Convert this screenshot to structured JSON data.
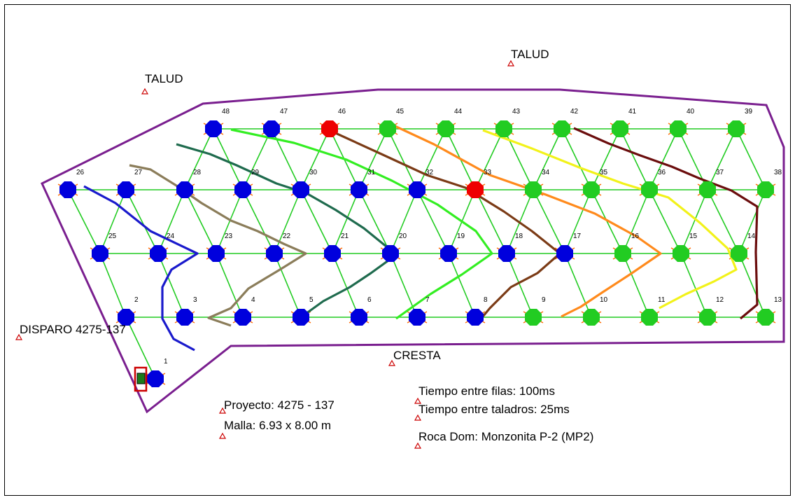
{
  "colors": {
    "boundary": "#7a1f8f",
    "connector": "#22cc22",
    "delay_arrow": "#ff6a00",
    "hole_blue": "#0000dd",
    "hole_green": "#22cc22",
    "hole_red": "#ee0000",
    "marker": "#cc0000",
    "contour_blue": "#1a1acc",
    "contour_khaki": "#8b7d5a",
    "contour_darkgreen": "#1f6b4e",
    "contour_lime": "#33ee22",
    "contour_brown": "#7b3b16",
    "contour_orange": "#ff8a1c",
    "contour_yellow": "#f2f21a",
    "contour_maroon": "#6b0d0d"
  },
  "labels": {
    "talud_1": "TALUD",
    "talud_2": "TALUD",
    "disparo": "DISPARO 4275-137",
    "cresta": "CRESTA",
    "proyecto": "Proyecto: 4275 - 137",
    "malla": "Malla:  6.93 x 8.00 m",
    "tiempo_filas": "Tiempo entre filas: 100ms",
    "tiempo_taladros": "Tiempo entre taladros: 25ms",
    "roca": "Roca Dom: Monzonita P-2 (MP2)"
  },
  "holes": [
    {
      "id": "1",
      "color": "blue"
    },
    {
      "id": "2",
      "color": "blue"
    },
    {
      "id": "3",
      "color": "blue"
    },
    {
      "id": "4",
      "color": "blue"
    },
    {
      "id": "5",
      "color": "blue"
    },
    {
      "id": "6",
      "color": "blue"
    },
    {
      "id": "7",
      "color": "blue"
    },
    {
      "id": "8",
      "color": "blue"
    },
    {
      "id": "9",
      "color": "green"
    },
    {
      "id": "10",
      "color": "green"
    },
    {
      "id": "11",
      "color": "green"
    },
    {
      "id": "12",
      "color": "green"
    },
    {
      "id": "13",
      "color": "green"
    },
    {
      "id": "14",
      "color": "green"
    },
    {
      "id": "15",
      "color": "green"
    },
    {
      "id": "16",
      "color": "green"
    },
    {
      "id": "17",
      "color": "blue"
    },
    {
      "id": "18",
      "color": "blue"
    },
    {
      "id": "19",
      "color": "blue"
    },
    {
      "id": "20",
      "color": "blue"
    },
    {
      "id": "21",
      "color": "blue"
    },
    {
      "id": "22",
      "color": "blue"
    },
    {
      "id": "23",
      "color": "blue"
    },
    {
      "id": "24",
      "color": "blue"
    },
    {
      "id": "25",
      "color": "blue"
    },
    {
      "id": "26",
      "color": "blue"
    },
    {
      "id": "27",
      "color": "blue"
    },
    {
      "id": "28",
      "color": "blue"
    },
    {
      "id": "29",
      "color": "blue"
    },
    {
      "id": "30",
      "color": "blue"
    },
    {
      "id": "31",
      "color": "blue"
    },
    {
      "id": "32",
      "color": "blue"
    },
    {
      "id": "33",
      "color": "red"
    },
    {
      "id": "34",
      "color": "green"
    },
    {
      "id": "35",
      "color": "green"
    },
    {
      "id": "36",
      "color": "green"
    },
    {
      "id": "37",
      "color": "green"
    },
    {
      "id": "38",
      "color": "green"
    },
    {
      "id": "39",
      "color": "green"
    },
    {
      "id": "40",
      "color": "green"
    },
    {
      "id": "41",
      "color": "green"
    },
    {
      "id": "42",
      "color": "green"
    },
    {
      "id": "43",
      "color": "green"
    },
    {
      "id": "44",
      "color": "green"
    },
    {
      "id": "45",
      "color": "green"
    },
    {
      "id": "46",
      "color": "red"
    },
    {
      "id": "47",
      "color": "blue"
    },
    {
      "id": "48",
      "color": "blue"
    }
  ]
}
